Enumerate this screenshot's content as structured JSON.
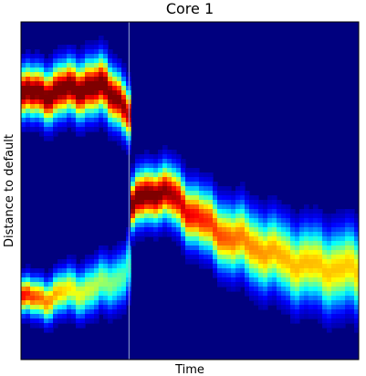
{
  "chart_data": {
    "type": "heatmap",
    "title": "Core 1",
    "xlabel": "Time",
    "ylabel": "Distance to default",
    "colormap": "jet",
    "colormap_stops": [
      "#00007f",
      "#0000ff",
      "#007fff",
      "#00ffff",
      "#7fff7f",
      "#ffff00",
      "#ff7f00",
      "#ff0000",
      "#7f0000"
    ],
    "background_color": "#00007f",
    "x_ticks_shown": false,
    "y_ticks_shown": false,
    "grid": false,
    "legend": "none",
    "x_range": [
      0,
      1
    ],
    "y_range": [
      0,
      1
    ],
    "density_ridges": [
      {
        "name": "upper band (before jump)",
        "time": [
          0.0,
          0.05,
          0.1,
          0.15,
          0.2,
          0.25,
          0.3,
          0.32
        ],
        "center": [
          0.78,
          0.79,
          0.79,
          0.8,
          0.81,
          0.8,
          0.77,
          0.72
        ],
        "spread": [
          0.085,
          0.085,
          0.09,
          0.09,
          0.095,
          0.095,
          0.09,
          0.085
        ],
        "intensity": [
          1.0,
          1.0,
          1.0,
          1.0,
          1.0,
          1.0,
          0.95,
          0.9
        ]
      },
      {
        "name": "lower band (before jump)",
        "time": [
          0.0,
          0.05,
          0.1,
          0.15,
          0.2,
          0.25,
          0.3,
          0.32
        ],
        "center": [
          0.18,
          0.18,
          0.19,
          0.2,
          0.21,
          0.22,
          0.25,
          0.28
        ],
        "spread": [
          0.06,
          0.065,
          0.07,
          0.075,
          0.08,
          0.085,
          0.09,
          0.1
        ],
        "intensity": [
          0.85,
          0.75,
          0.68,
          0.6,
          0.55,
          0.5,
          0.45,
          0.4
        ]
      },
      {
        "name": "merged band (after jump)",
        "time": [
          0.32,
          0.35,
          0.4,
          0.45,
          0.5,
          0.55,
          0.6,
          0.65,
          0.7,
          0.75,
          0.8,
          0.85,
          0.9,
          0.95,
          1.0
        ],
        "center": [
          0.42,
          0.48,
          0.5,
          0.48,
          0.44,
          0.4,
          0.37,
          0.35,
          0.33,
          0.31,
          0.29,
          0.28,
          0.27,
          0.27,
          0.26
        ],
        "spread": [
          0.08,
          0.09,
          0.09,
          0.095,
          0.1,
          0.105,
          0.11,
          0.115,
          0.12,
          0.12,
          0.125,
          0.125,
          0.13,
          0.13,
          0.13
        ],
        "intensity": [
          1.0,
          1.0,
          0.98,
          0.92,
          0.85,
          0.8,
          0.76,
          0.72,
          0.7,
          0.68,
          0.66,
          0.66,
          0.65,
          0.65,
          0.64
        ]
      }
    ],
    "transition_time": 0.32
  }
}
